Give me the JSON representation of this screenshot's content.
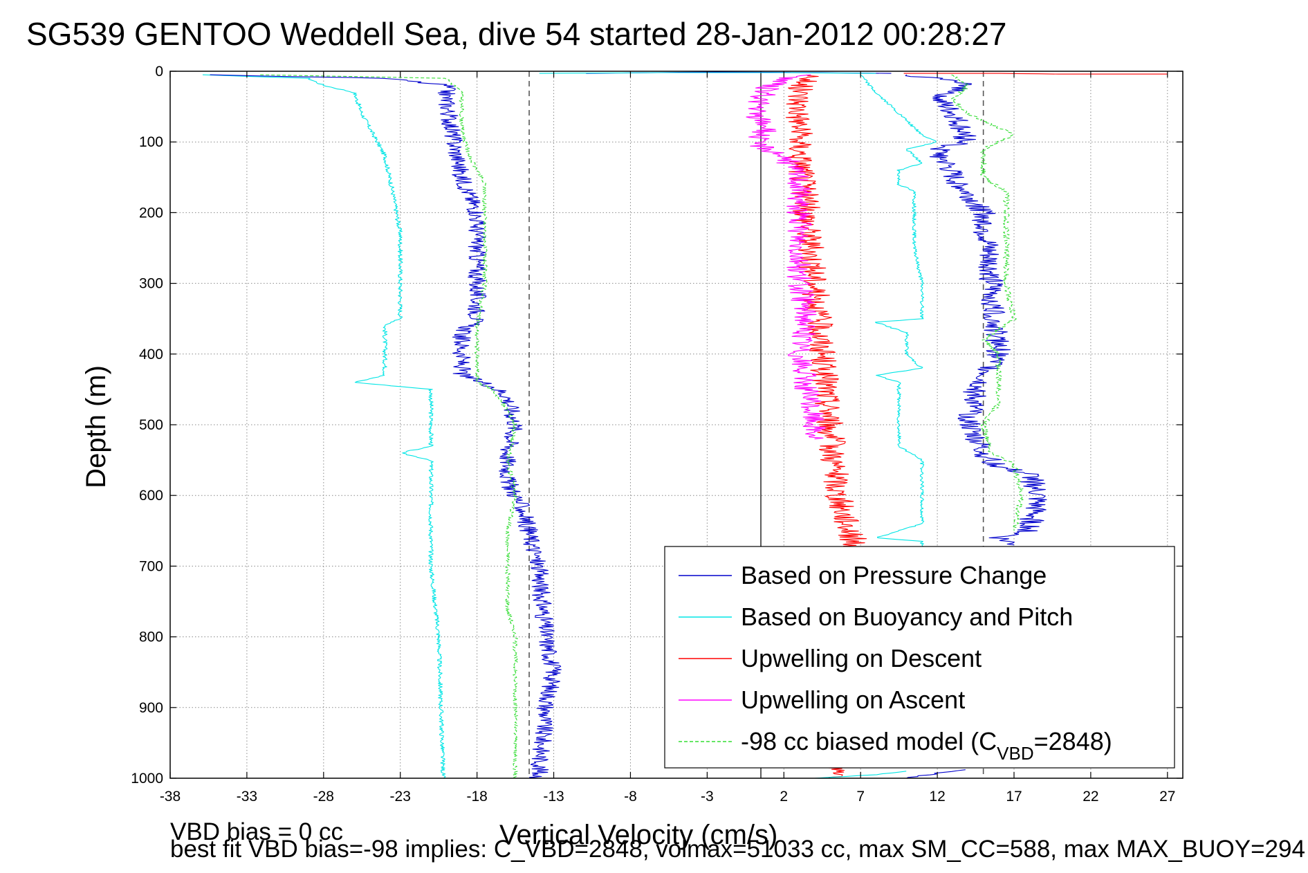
{
  "chart_data": {
    "type": "line",
    "title": "SG539 GENTOO Weddell Sea, dive 54 started 28-Jan-2012 00:28:27",
    "xlabel": "Vertical Velocity (cm/s)",
    "ylabel": "Depth (m)",
    "xlim": [
      -38,
      28
    ],
    "ylim": [
      0,
      1000
    ],
    "y_reversed": true,
    "grid": true,
    "x_ticks": [
      -38,
      -33,
      -28,
      -23,
      -18,
      -13,
      -8,
      -3,
      2,
      7,
      12,
      17,
      22,
      27
    ],
    "y_ticks": [
      0,
      100,
      200,
      300,
      400,
      500,
      600,
      700,
      800,
      900,
      1000
    ],
    "reference_lines": [
      {
        "x": -14.6,
        "style": "dashed",
        "color": "#555555"
      },
      {
        "x": 0.5,
        "style": "solid",
        "color": "#333333"
      },
      {
        "x": 15,
        "style": "dashed",
        "color": "#555555"
      }
    ],
    "legend_position": "lower-right",
    "legend": [
      {
        "label": "Based on Pressure Change",
        "color": "#0000cc",
        "dash": false
      },
      {
        "label": "Based on Buoyancy and Pitch",
        "color": "#00e5e5",
        "dash": false
      },
      {
        "label": "Upwelling on Descent",
        "color": "#ff0000",
        "dash": false
      },
      {
        "label": "Upwelling on Ascent",
        "color": "#ff00ff",
        "dash": false
      },
      {
        "label": "-98 cc biased model (C",
        "sub": "VBD",
        "suffix": "=2848)",
        "color": "#33dd33",
        "dash": true
      }
    ],
    "series": [
      {
        "color": "#00e5e5",
        "dash": false,
        "noise": 0.15,
        "points": [
          [
            -36,
            5
          ],
          [
            -29,
            10
          ],
          [
            -28,
            20
          ],
          [
            -26,
            30
          ],
          [
            -25.5,
            60
          ],
          [
            -24,
            120
          ],
          [
            -23.5,
            170
          ],
          [
            -23,
            230
          ],
          [
            -23,
            280
          ],
          [
            -23,
            350
          ],
          [
            -24,
            360
          ],
          [
            -24,
            400
          ],
          [
            -24,
            430
          ],
          [
            -26,
            440
          ],
          [
            -21,
            450
          ],
          [
            -21,
            500
          ],
          [
            -21,
            530
          ],
          [
            -23,
            540
          ],
          [
            -21,
            550
          ],
          [
            -21,
            700
          ],
          [
            -20.5,
            800
          ],
          [
            -20.2,
            1000
          ]
        ]
      },
      {
        "color": "#0000cc",
        "dash": false,
        "noise": 0.6,
        "points": [
          [
            -36,
            5
          ],
          [
            -24,
            10
          ],
          [
            -22,
            15
          ],
          [
            -20,
            20
          ],
          [
            -20,
            40
          ],
          [
            -19.5,
            100
          ],
          [
            -19,
            150
          ],
          [
            -18,
            200
          ],
          [
            -18,
            350
          ],
          [
            -19,
            370
          ],
          [
            -19,
            430
          ],
          [
            -17,
            445
          ],
          [
            -16,
            460
          ],
          [
            -15.5,
            500
          ],
          [
            -16,
            540
          ],
          [
            -16,
            580
          ],
          [
            -15,
            620
          ],
          [
            -14,
            700
          ],
          [
            -13.5,
            800
          ],
          [
            -13,
            850
          ],
          [
            -13.5,
            900
          ],
          [
            -14,
            1000
          ]
        ]
      },
      {
        "color": "#33dd33",
        "dash": true,
        "noise": 0.15,
        "points": [
          [
            -32,
            5
          ],
          [
            -20,
            10
          ],
          [
            -19,
            30
          ],
          [
            -19,
            80
          ],
          [
            -18.5,
            120
          ],
          [
            -17.5,
            160
          ],
          [
            -17.5,
            300
          ],
          [
            -18,
            360
          ],
          [
            -18,
            440
          ],
          [
            -17,
            450
          ],
          [
            -16,
            480
          ],
          [
            -15.5,
            500
          ],
          [
            -16,
            550
          ],
          [
            -15.5,
            600
          ],
          [
            -16,
            650
          ],
          [
            -16,
            760
          ],
          [
            -15.5,
            800
          ],
          [
            -15.5,
            1000
          ]
        ]
      },
      {
        "color": "#ff0000",
        "dash": false,
        "noise": 0.9,
        "points": [
          [
            4,
            5
          ],
          [
            3,
            20
          ],
          [
            3,
            100
          ],
          [
            3.5,
            200
          ],
          [
            4,
            300
          ],
          [
            4.5,
            400
          ],
          [
            5,
            500
          ],
          [
            5.5,
            600
          ],
          [
            6.5,
            660
          ],
          [
            6.5,
            680
          ]
        ]
      },
      {
        "color": "#ff00ff",
        "dash": false,
        "noise": 0.8,
        "points": [
          [
            3,
            5
          ],
          [
            1,
            20
          ],
          [
            0,
            60
          ],
          [
            1,
            80
          ],
          [
            0,
            100
          ],
          [
            2,
            120
          ],
          [
            3,
            150
          ],
          [
            3,
            250
          ],
          [
            3,
            300
          ],
          [
            3.5,
            350
          ],
          [
            3,
            400
          ],
          [
            3.5,
            450
          ],
          [
            4,
            500
          ],
          [
            4,
            520
          ]
        ]
      },
      {
        "color": "#00e5e5",
        "dash": false,
        "noise": 0.12,
        "points": [
          [
            7,
            5
          ],
          [
            8,
            30
          ],
          [
            8.5,
            40
          ],
          [
            9,
            50
          ],
          [
            10,
            70
          ],
          [
            11,
            90
          ],
          [
            12,
            100
          ],
          [
            10,
            110
          ],
          [
            11,
            130
          ],
          [
            9.5,
            140
          ],
          [
            9.5,
            160
          ],
          [
            10.5,
            170
          ],
          [
            10.5,
            250
          ],
          [
            11,
            300
          ],
          [
            11,
            350
          ],
          [
            8,
            355
          ],
          [
            10,
            370
          ],
          [
            10,
            400
          ],
          [
            11,
            420
          ],
          [
            8,
            430
          ],
          [
            9.5,
            440
          ],
          [
            9.5,
            530
          ],
          [
            11,
            550
          ],
          [
            11,
            640
          ],
          [
            8,
            660
          ],
          [
            11,
            665
          ],
          [
            11,
            680
          ]
        ]
      },
      {
        "color": "#0000cc",
        "dash": false,
        "noise": 0.8,
        "points": [
          [
            10,
            5
          ],
          [
            12,
            10
          ],
          [
            14,
            20
          ],
          [
            12,
            40
          ],
          [
            13,
            60
          ],
          [
            14,
            100
          ],
          [
            12,
            110
          ],
          [
            13,
            150
          ],
          [
            15,
            200
          ],
          [
            15.5,
            300
          ],
          [
            16,
            400
          ],
          [
            14.5,
            450
          ],
          [
            14,
            500
          ],
          [
            15,
            540
          ],
          [
            16,
            560
          ],
          [
            18,
            570
          ],
          [
            18.5,
            600
          ],
          [
            18,
            650
          ],
          [
            16,
            660
          ],
          [
            17,
            670
          ]
        ]
      },
      {
        "color": "#33dd33",
        "dash": true,
        "noise": 0.2,
        "points": [
          [
            13,
            5
          ],
          [
            14,
            20
          ],
          [
            13,
            40
          ],
          [
            14,
            60
          ],
          [
            16,
            80
          ],
          [
            17,
            90
          ],
          [
            15,
            110
          ],
          [
            15,
            150
          ],
          [
            16.5,
            170
          ],
          [
            16.5,
            300
          ],
          [
            17,
            350
          ],
          [
            15,
            380
          ],
          [
            16,
            400
          ],
          [
            16,
            470
          ],
          [
            15,
            500
          ],
          [
            15.5,
            540
          ],
          [
            17,
            555
          ],
          [
            17.5,
            600
          ],
          [
            17,
            650
          ]
        ]
      },
      {
        "color": "#ff0000",
        "dash": false,
        "noise": 0.3,
        "points": [
          [
            10,
            3
          ],
          [
            16,
            3
          ],
          [
            20,
            4
          ],
          [
            27,
            4
          ]
        ]
      },
      {
        "color": "#0000cc",
        "dash": false,
        "noise": 0.4,
        "points": [
          [
            -11,
            3
          ],
          [
            -2,
            1
          ],
          [
            4,
            2
          ],
          [
            9,
            3
          ]
        ]
      },
      {
        "color": "#00e5e5",
        "dash": false,
        "noise": 0.5,
        "points": [
          [
            -14,
            3
          ],
          [
            -6,
            2
          ],
          [
            2,
            2
          ],
          [
            8,
            3
          ]
        ]
      },
      {
        "color": "#ff0000",
        "dash": false,
        "noise": 0.6,
        "points": [
          [
            5,
            985
          ],
          [
            6,
            990
          ],
          [
            5,
            1000
          ]
        ]
      },
      {
        "color": "#00e5e5",
        "dash": false,
        "noise": 0.2,
        "points": [
          [
            10,
            990
          ],
          [
            8,
            995
          ],
          [
            4,
            1000
          ]
        ]
      },
      {
        "color": "#0000cc",
        "dash": false,
        "noise": 0.3,
        "points": [
          [
            14,
            988
          ],
          [
            12,
            993
          ],
          [
            10,
            1000
          ]
        ]
      }
    ]
  },
  "footer": {
    "bias_line": "VBD bias = 0 cc",
    "fit_line": "best fit VBD bias=-98 implies: C_VBD=2848, volmax=51033 cc, max SM_CC=588, max MAX_BUOY=294"
  }
}
